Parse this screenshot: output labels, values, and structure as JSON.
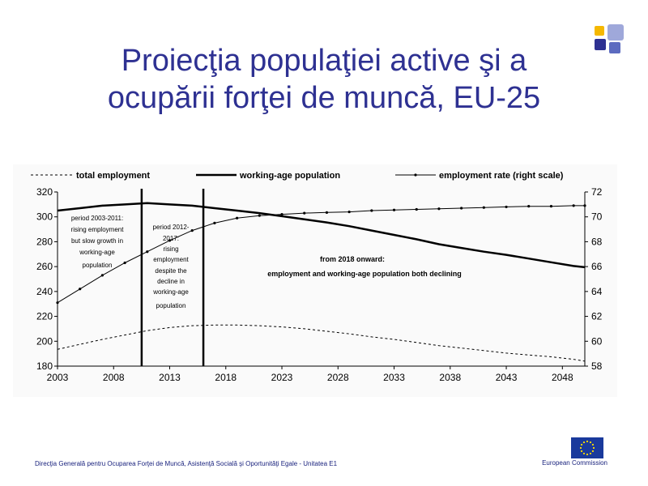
{
  "slide": {
    "title_line1": "Proiecţia populaţiei active şi a",
    "title_line2": "ocupării forţei de muncă, EU-25",
    "footer_text": "Direcţia Generală pentru Ocuparea Forţei de Muncă, Asistenţă Socială şi Oportunităţi Egale - Unitatea E1",
    "footer_org": "European Commission"
  },
  "logo_colors": [
    "#f5b800",
    "#2e3192",
    "#9fa8da",
    "#5c6bc0"
  ],
  "chart_data": {
    "type": "line",
    "title": "",
    "legend": {
      "placement": "top",
      "entries": [
        "total employment",
        "working-age population",
        "employment rate (right scale)"
      ]
    },
    "x_ticks": [
      2003,
      2008,
      2013,
      2018,
      2023,
      2028,
      2033,
      2038,
      2043,
      2048
    ],
    "xlim": [
      2003,
      2050
    ],
    "y_left": {
      "ticks": [
        180,
        200,
        220,
        240,
        260,
        280,
        300,
        320
      ],
      "lim": [
        180,
        320
      ]
    },
    "y_right": {
      "ticks": [
        58,
        60,
        62,
        64,
        66,
        68,
        70,
        72
      ],
      "lim": [
        58,
        72
      ]
    },
    "grid": false,
    "series": [
      {
        "name": "total employment",
        "axis": "left",
        "style": "dashed",
        "x": [
          2003,
          2005,
          2007,
          2009,
          2011,
          2013,
          2015,
          2017,
          2019,
          2021,
          2023,
          2025,
          2027,
          2029,
          2031,
          2033,
          2035,
          2037,
          2039,
          2041,
          2043,
          2045,
          2047,
          2049,
          2050
        ],
        "y": [
          193.5,
          197.5,
          201.5,
          205,
          208.5,
          211,
          212.5,
          213,
          213,
          212.5,
          211.5,
          210,
          208,
          206,
          203.5,
          201.5,
          199,
          196.5,
          194.5,
          192.5,
          190.5,
          189,
          187.5,
          185.5,
          184
        ]
      },
      {
        "name": "working-age population",
        "axis": "left",
        "style": "thick",
        "x": [
          2003,
          2005,
          2007,
          2009,
          2011,
          2013,
          2015,
          2017,
          2019,
          2021,
          2023,
          2025,
          2027,
          2029,
          2031,
          2033,
          2035,
          2037,
          2039,
          2041,
          2043,
          2045,
          2047,
          2049,
          2050
        ],
        "y": [
          305,
          307,
          309,
          310,
          311,
          310,
          309,
          307,
          305,
          303,
          300.5,
          298,
          295.5,
          292.5,
          289,
          285.5,
          282,
          278,
          275,
          272,
          269.5,
          266.5,
          263.5,
          260.5,
          259.5
        ]
      },
      {
        "name": "employment rate (right scale)",
        "axis": "right",
        "style": "marker",
        "x": [
          2003,
          2005,
          2007,
          2009,
          2011,
          2013,
          2015,
          2017,
          2019,
          2021,
          2023,
          2025,
          2027,
          2029,
          2031,
          2033,
          2035,
          2037,
          2039,
          2041,
          2043,
          2045,
          2047,
          2049,
          2050
        ],
        "y": [
          63.1,
          64.2,
          65.3,
          66.3,
          67.2,
          68.1,
          68.9,
          69.5,
          69.9,
          70.1,
          70.2,
          70.3,
          70.35,
          70.4,
          70.5,
          70.55,
          70.6,
          70.65,
          70.7,
          70.75,
          70.8,
          70.85,
          70.85,
          70.9,
          70.9
        ]
      }
    ],
    "period_lines": [
      2010.5,
      2016
    ],
    "annotations": {
      "period1": [
        "period 2003-2011:",
        "rising  employment",
        "but slow growth in",
        "working-age",
        "population"
      ],
      "period2": [
        "period 2012-",
        "2017:",
        "rising",
        "employment",
        "despite the",
        "decline in",
        "working-age",
        "population"
      ],
      "onward_line1": "from 2018 onward:",
      "onward_line2": "employment  and working-age population both declining"
    }
  }
}
